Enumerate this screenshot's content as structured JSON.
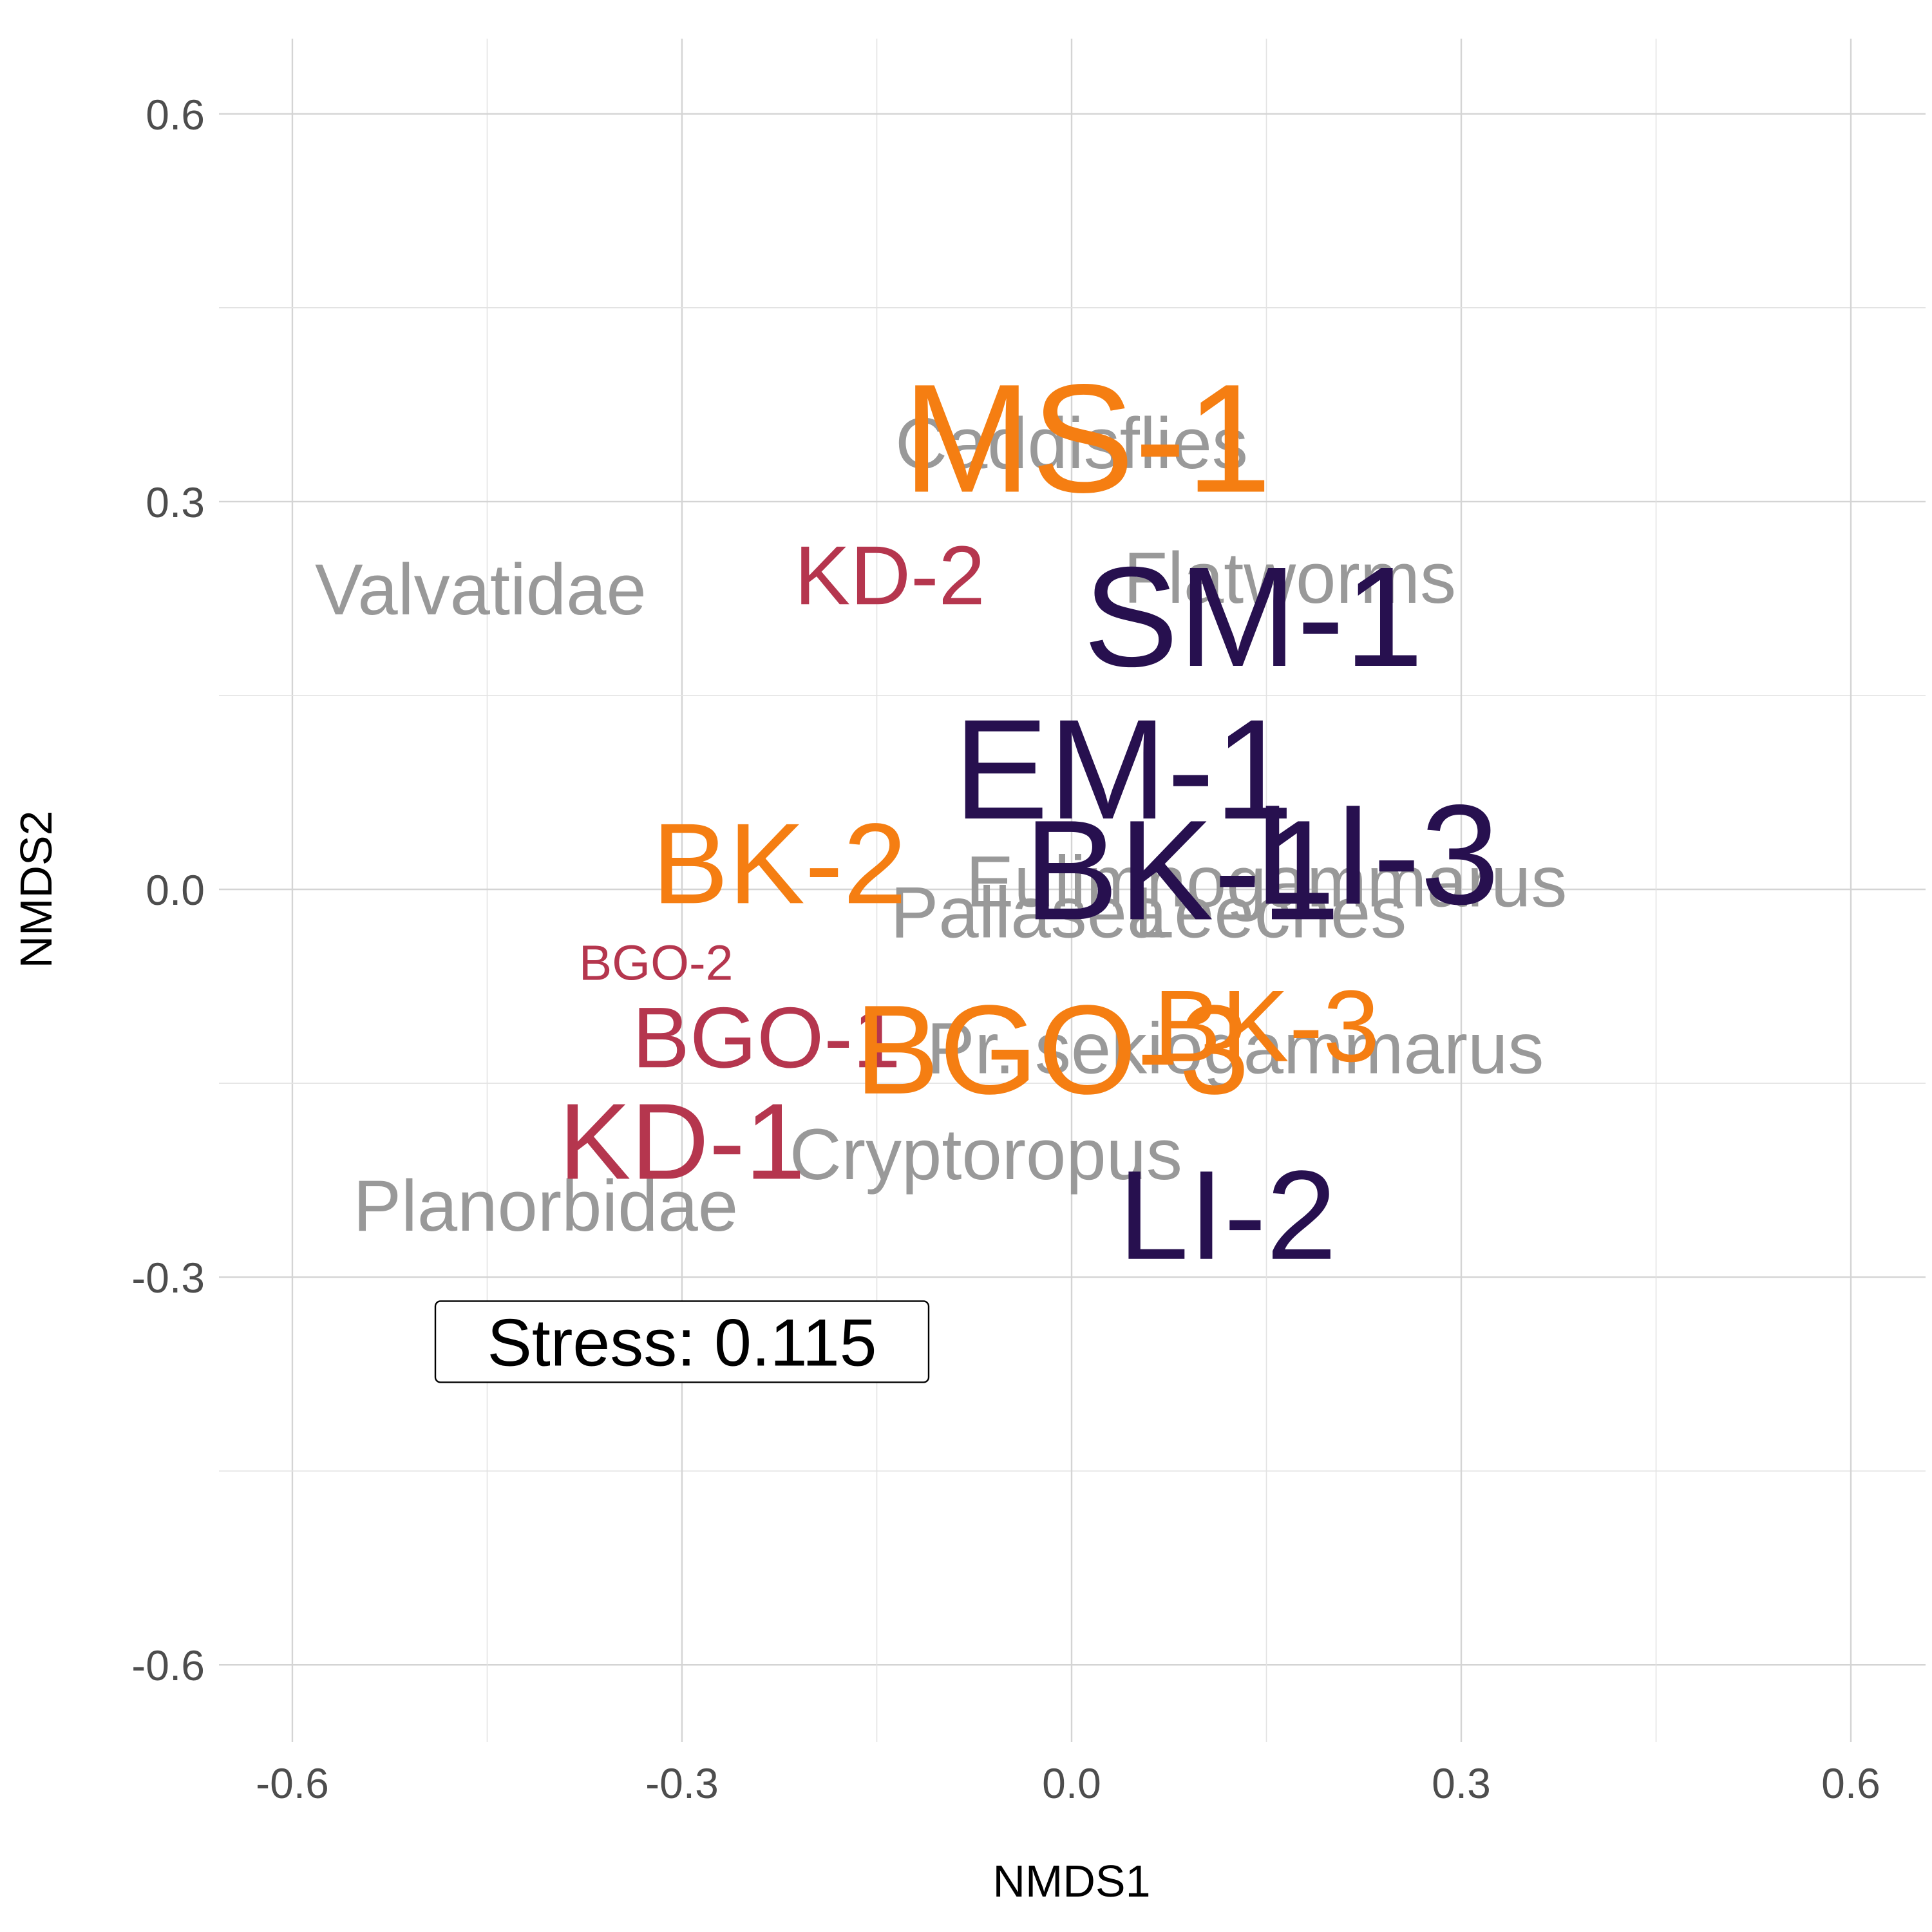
{
  "chart_data": {
    "type": "scatter",
    "xlabel": "NMDS1",
    "ylabel": "NMDS2",
    "xlim": [
      -0.6,
      0.6
    ],
    "ylim": [
      -0.6,
      0.6
    ],
    "x_ticks": [
      -0.6,
      -0.3,
      0.0,
      0.3,
      0.6
    ],
    "y_ticks": [
      0.6,
      0.3,
      0.0,
      -0.3,
      -0.6
    ],
    "x_tick_labels": [
      "-0.6",
      "-0.3",
      "0.0",
      "0.3",
      "0.6"
    ],
    "y_tick_labels": [
      "0.6",
      "0.3",
      "0.0",
      "-0.3",
      "-0.6"
    ],
    "grid": true,
    "legend": "none",
    "colors": {
      "taxa": "#999999",
      "dark_purple": "#27104f",
      "crimson": "#b5364e",
      "orange": "#f57e12"
    },
    "taxa": [
      {
        "label": "Caddisflies",
        "x": 0.0,
        "y": 0.345
      },
      {
        "label": "Valvatidae",
        "x": -0.455,
        "y": 0.232
      },
      {
        "label": "Flatworms",
        "x": 0.168,
        "y": 0.241
      },
      {
        "label": "Eulimnogammarus",
        "x": 0.15,
        "y": 0.006
      },
      {
        "label": "Pallasea",
        "x": -0.033,
        "y": -0.018
      },
      {
        "label": "Leeches",
        "x": 0.153,
        "y": -0.018
      },
      {
        "label": "Pr. sekiogammarus",
        "x": 0.126,
        "y": -0.123
      },
      {
        "label": "Cryptoropus",
        "x": -0.066,
        "y": -0.205
      },
      {
        "label": "Planorbidae",
        "x": -0.405,
        "y": -0.245
      }
    ],
    "sites": [
      {
        "label": "MS-1",
        "x": 0.012,
        "y": 0.349,
        "color": "orange",
        "size": 2.5
      },
      {
        "label": "KD-2",
        "x": -0.14,
        "y": 0.243,
        "color": "crimson",
        "size": 1.35
      },
      {
        "label": "SM-1",
        "x": 0.14,
        "y": 0.211,
        "color": "dark_purple",
        "size": 2.3
      },
      {
        "label": "EM-1",
        "x": 0.04,
        "y": 0.093,
        "color": "dark_purple",
        "size": 2.3
      },
      {
        "label": "BK-1",
        "x": 0.085,
        "y": 0.015,
        "color": "dark_purple",
        "size": 2.3
      },
      {
        "label": "LI-3",
        "x": 0.235,
        "y": 0.027,
        "color": "dark_purple",
        "size": 2.3
      },
      {
        "label": "BK-2",
        "x": -0.225,
        "y": 0.02,
        "color": "orange",
        "size": 1.85
      },
      {
        "label": "BGO-2",
        "x": -0.32,
        "y": -0.057,
        "color": "crimson",
        "size": 0.8
      },
      {
        "label": "BGO-1",
        "x": -0.235,
        "y": -0.115,
        "color": "crimson",
        "size": 1.4
      },
      {
        "label": "BGO-3",
        "x": -0.015,
        "y": -0.124,
        "color": "orange",
        "size": 2.05
      },
      {
        "label": "BK-3",
        "x": 0.15,
        "y": -0.106,
        "color": "orange",
        "size": 1.65
      },
      {
        "label": "KD-1",
        "x": -0.3,
        "y": -0.195,
        "color": "crimson",
        "size": 1.75
      },
      {
        "label": "LI-2",
        "x": 0.12,
        "y": -0.252,
        "color": "dark_purple",
        "size": 2.05
      }
    ],
    "annotation": {
      "text": "Stress:  0.115",
      "x": -0.3,
      "y": -0.35
    }
  }
}
